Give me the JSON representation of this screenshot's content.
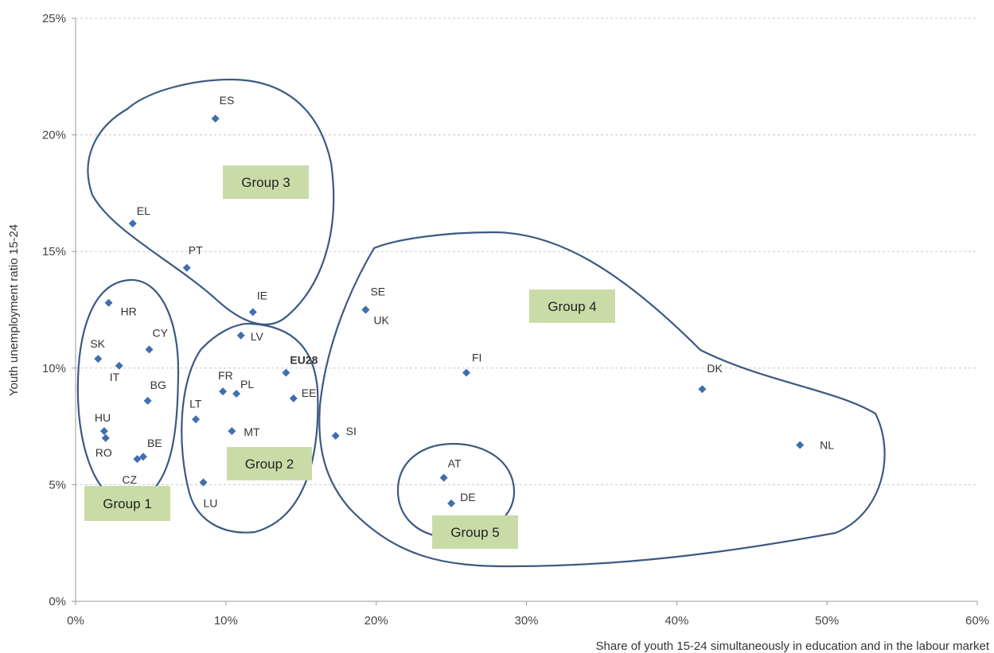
{
  "chart_data": {
    "type": "scatter",
    "xlabel": "Share of youth 15-24 simultaneously in education and in the labour market",
    "ylabel": "Youth unemployment ratio 15-24",
    "xlim": [
      0,
      60
    ],
    "ylim": [
      0,
      25
    ],
    "x_ticks": [
      "0%",
      "10%",
      "20%",
      "30%",
      "40%",
      "50%",
      "60%"
    ],
    "y_ticks": [
      "0%",
      "5%",
      "10%",
      "15%",
      "20%",
      "25%"
    ],
    "grid": "horizontal dashed",
    "marker_color": "#3f6fae",
    "outline_color": "#3b5a82",
    "group_box_color": "#c9dca8",
    "points": [
      {
        "label": "ES",
        "x": 9.3,
        "y": 20.7
      },
      {
        "label": "EL",
        "x": 3.8,
        "y": 16.2
      },
      {
        "label": "PT",
        "x": 7.4,
        "y": 14.3
      },
      {
        "label": "IE",
        "x": 11.8,
        "y": 12.4
      },
      {
        "label": "LV",
        "x": 11.0,
        "y": 11.4
      },
      {
        "label": "HR",
        "x": 2.2,
        "y": 12.8
      },
      {
        "label": "SK",
        "x": 1.5,
        "y": 10.4
      },
      {
        "label": "CY",
        "x": 4.9,
        "y": 10.8
      },
      {
        "label": "IT",
        "x": 2.9,
        "y": 10.1
      },
      {
        "label": "BG",
        "x": 4.8,
        "y": 8.6
      },
      {
        "label": "HU",
        "x": 1.9,
        "y": 7.3
      },
      {
        "label": "RO",
        "x": 2.0,
        "y": 7.0
      },
      {
        "label": "BE",
        "x": 4.5,
        "y": 6.2
      },
      {
        "label": "CZ",
        "x": 4.1,
        "y": 6.1
      },
      {
        "label": "EU28",
        "x": 14.0,
        "y": 9.8,
        "bold": true
      },
      {
        "label": "FR",
        "x": 9.8,
        "y": 9.0
      },
      {
        "label": "PL",
        "x": 10.7,
        "y": 8.9
      },
      {
        "label": "EE",
        "x": 14.5,
        "y": 8.7
      },
      {
        "label": "LT",
        "x": 8.0,
        "y": 7.8
      },
      {
        "label": "MT",
        "x": 10.4,
        "y": 7.3
      },
      {
        "label": "LU",
        "x": 8.5,
        "y": 5.1
      },
      {
        "label": "SI",
        "x": 17.3,
        "y": 7.1
      },
      {
        "label": "SE",
        "x": 19.3,
        "y": 12.5
      },
      {
        "label": "UK",
        "x": 19.3,
        "y": 12.5
      },
      {
        "label": "FI",
        "x": 26.0,
        "y": 9.8
      },
      {
        "label": "DK",
        "x": 41.7,
        "y": 9.1
      },
      {
        "label": "NL",
        "x": 48.2,
        "y": 6.7
      },
      {
        "label": "AT",
        "x": 24.5,
        "y": 5.3
      },
      {
        "label": "DE",
        "x": 25.0,
        "y": 4.2
      }
    ],
    "groups": [
      {
        "label": "Group 1"
      },
      {
        "label": "Group 2"
      },
      {
        "label": "Group 3"
      },
      {
        "label": "Group 4"
      },
      {
        "label": "Group 5"
      }
    ]
  }
}
